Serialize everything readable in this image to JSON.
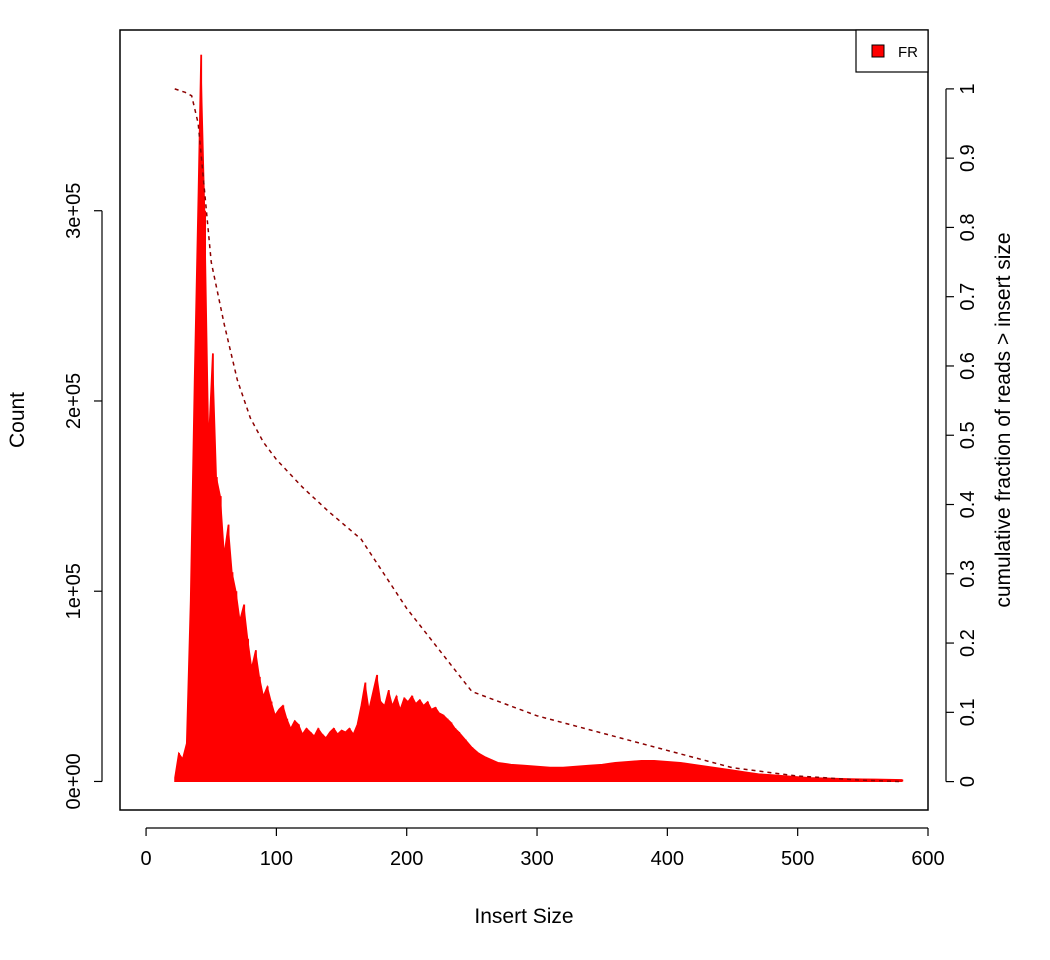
{
  "chart_data": {
    "type": "bar",
    "title": "",
    "xlabel": "Insert Size",
    "ylabel": "Count",
    "y2label": "cumulative fraction of reads > insert size",
    "xlim": [
      -20,
      600
    ],
    "ylim": [
      -15000,
      395000
    ],
    "y2lim": [
      -0.041,
      1.085
    ],
    "xticks": [
      0,
      100,
      200,
      300,
      400,
      500,
      600
    ],
    "yticks": [
      0,
      100000,
      200000,
      300000
    ],
    "ytick_labels": [
      "0e+00",
      "1e+05",
      "2e+05",
      "3e+05"
    ],
    "y2ticks": [
      0,
      0.1,
      0.2,
      0.3,
      0.4,
      0.5,
      0.6,
      0.7,
      0.8,
      0.9,
      1
    ],
    "y2tick_labels": [
      "0",
      "0.1",
      "0.2",
      "0.3",
      "0.4",
      "0.5",
      "0.6",
      "0.7",
      "0.8",
      "0.9",
      "1"
    ],
    "grid": false,
    "legend": {
      "position": "top-right",
      "entries": [
        {
          "label": "FR",
          "color": "#ff0000"
        }
      ]
    },
    "series": [
      {
        "name": "FR",
        "kind": "histogram",
        "color": "#ff0000",
        "x": [
          22,
          25,
          28,
          31,
          34,
          37,
          40,
          42,
          45,
          48,
          51,
          54,
          57,
          60,
          63,
          66,
          69,
          72,
          75,
          78,
          81,
          84,
          87,
          90,
          93,
          96,
          99,
          102,
          105,
          108,
          111,
          114,
          117,
          120,
          123,
          126,
          129,
          132,
          135,
          138,
          141,
          144,
          147,
          150,
          153,
          156,
          159,
          162,
          165,
          168,
          171,
          174,
          177,
          180,
          183,
          186,
          189,
          192,
          195,
          198,
          201,
          204,
          207,
          210,
          213,
          216,
          219,
          222,
          225,
          228,
          231,
          234,
          237,
          240,
          245,
          250,
          255,
          260,
          265,
          270,
          275,
          280,
          290,
          300,
          310,
          320,
          330,
          340,
          350,
          360,
          370,
          380,
          390,
          400,
          410,
          420,
          430,
          440,
          450,
          460,
          470,
          480,
          490,
          500,
          510,
          520,
          530,
          540,
          550,
          560,
          570,
          580
        ],
        "values": [
          2000,
          15000,
          12000,
          20000,
          95000,
          210000,
          310000,
          382000,
          300000,
          180000,
          225000,
          160000,
          150000,
          120000,
          135000,
          110000,
          100000,
          85000,
          93000,
          75000,
          60000,
          69000,
          55000,
          45000,
          50000,
          42000,
          35000,
          38000,
          40000,
          33000,
          28000,
          32000,
          30000,
          25000,
          28000,
          26000,
          24000,
          28000,
          25000,
          23000,
          26000,
          28000,
          25000,
          27000,
          26000,
          28000,
          25000,
          30000,
          40000,
          52000,
          38000,
          47000,
          56000,
          42000,
          40000,
          48000,
          40000,
          45000,
          38000,
          44000,
          42000,
          45000,
          41000,
          43000,
          40000,
          42000,
          38000,
          39000,
          36000,
          35000,
          33000,
          31000,
          28000,
          26000,
          22000,
          18000,
          15000,
          13000,
          11500,
          10000,
          9500,
          9000,
          8500,
          8000,
          7500,
          7500,
          8000,
          8500,
          9000,
          10000,
          10500,
          11000,
          11000,
          10500,
          10000,
          9000,
          8000,
          7000,
          6000,
          5000,
          4000,
          3500,
          3000,
          2500,
          2000,
          1800,
          1600,
          1400,
          1300,
          1200,
          1100,
          1000
        ]
      },
      {
        "name": "cumulative fraction of reads > insert size",
        "kind": "line",
        "axis": "right",
        "color": "#8b0000",
        "x": [
          22,
          30,
          35,
          40,
          45,
          50,
          60,
          70,
          80,
          90,
          100,
          120,
          140,
          165,
          200,
          250,
          300,
          350,
          400,
          450,
          500,
          550,
          580
        ],
        "values": [
          1.0,
          0.995,
          0.99,
          0.95,
          0.85,
          0.75,
          0.66,
          0.58,
          0.525,
          0.49,
          0.465,
          0.425,
          0.39,
          0.35,
          0.25,
          0.13,
          0.095,
          0.07,
          0.045,
          0.02,
          0.008,
          0.002,
          0.0
        ]
      }
    ]
  }
}
